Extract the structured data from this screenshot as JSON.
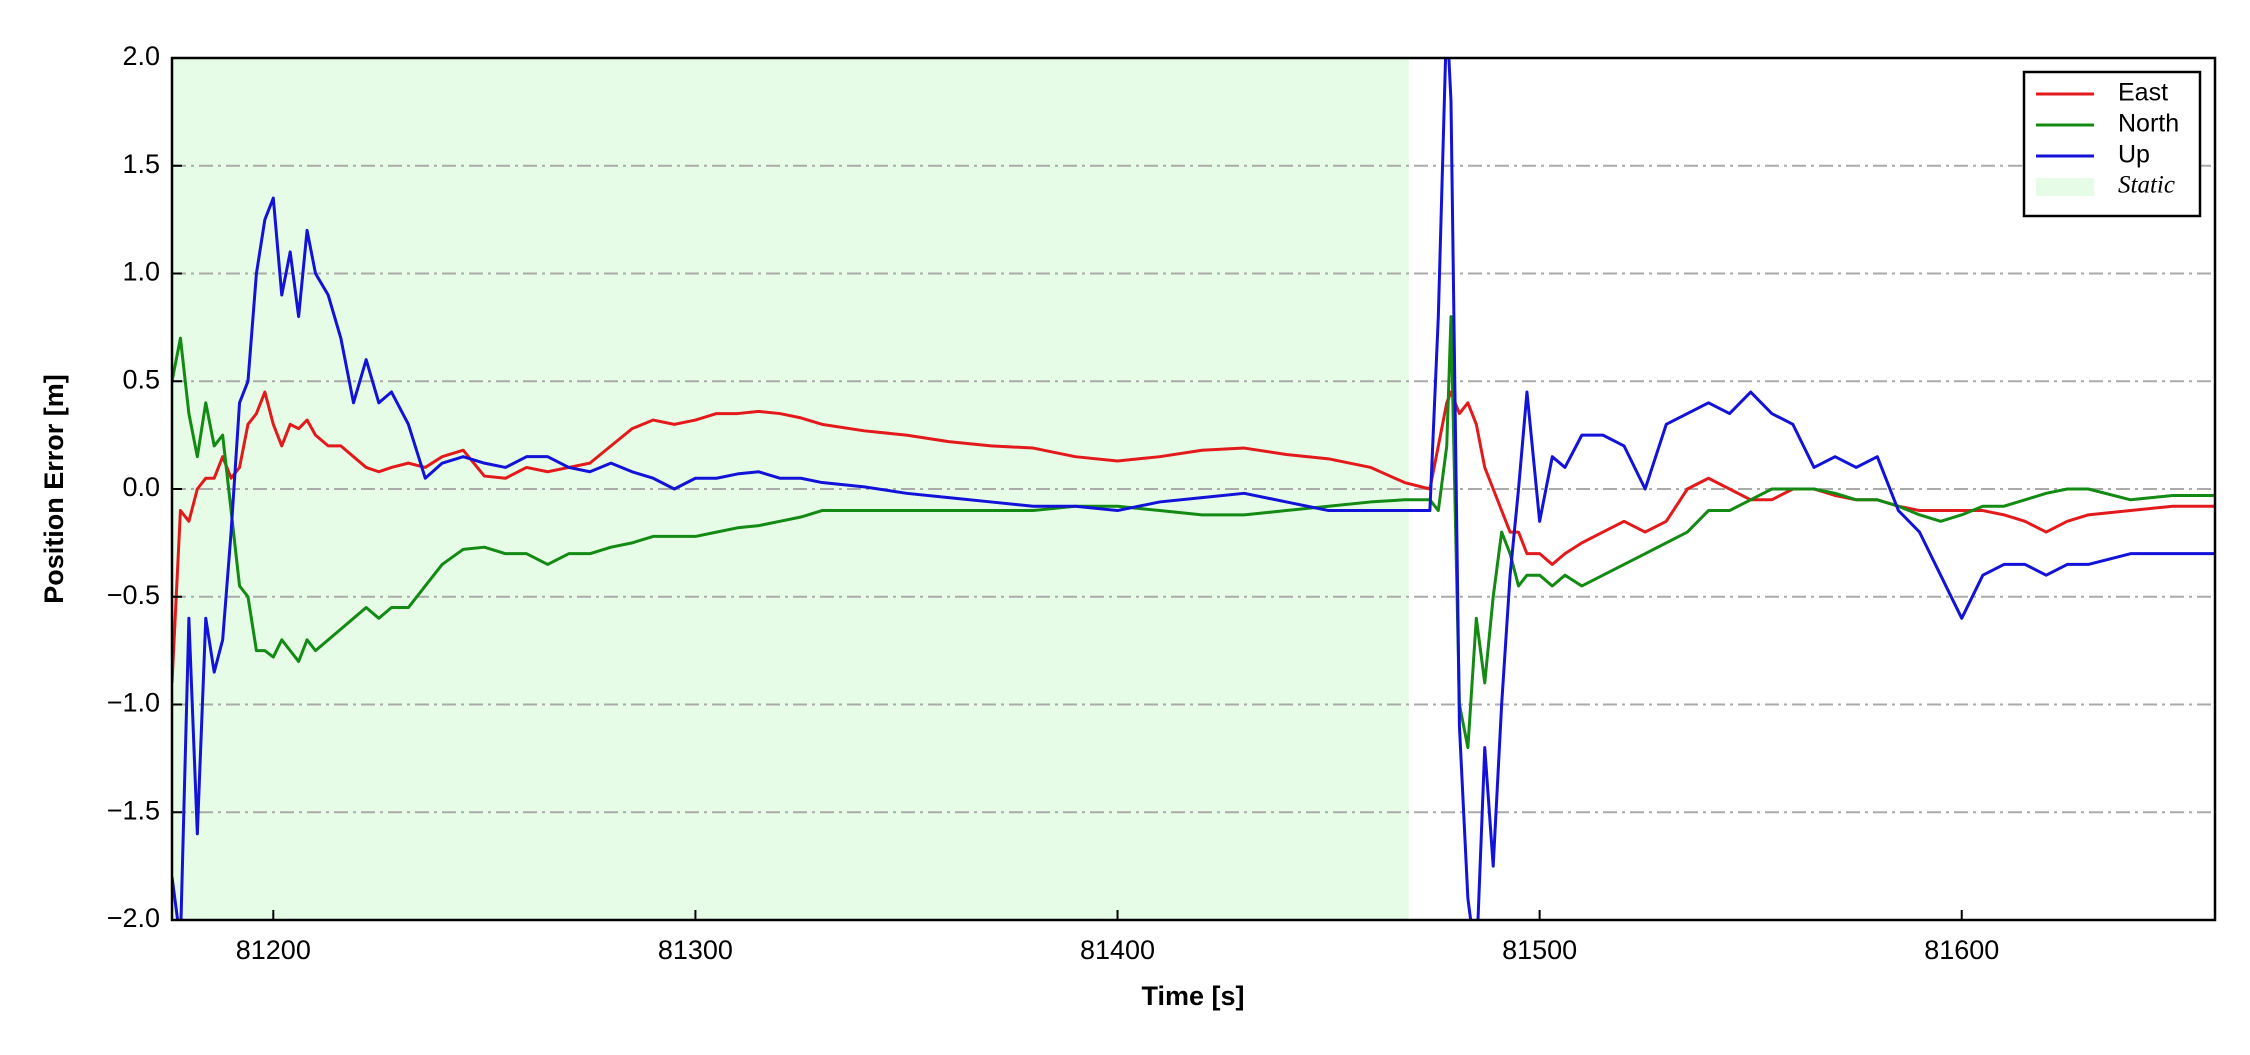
{
  "chart_data": {
    "type": "line",
    "xlabel": "Time [s]",
    "ylabel": "Position Error [m]",
    "xlim": [
      81176,
      81660
    ],
    "ylim": [
      -2.0,
      2.0
    ],
    "xticks": [
      81200,
      81300,
      81400,
      81500,
      81600
    ],
    "yticks": [
      {
        "value": -2.0,
        "label": "−2.0"
      },
      {
        "value": -1.5,
        "label": "−1.5"
      },
      {
        "value": -1.0,
        "label": "−1.0"
      },
      {
        "value": -0.5,
        "label": "−0.5"
      },
      {
        "value": 0.0,
        "label": "0.0"
      },
      {
        "value": 0.5,
        "label": "0.5"
      },
      {
        "value": 1.0,
        "label": "1.0"
      },
      {
        "value": 1.5,
        "label": "1.5"
      },
      {
        "value": 2.0,
        "label": "2.0"
      }
    ],
    "grid": true,
    "legend": "upper right",
    "shade": {
      "label": "Static",
      "x0": 81176,
      "x1": 81469,
      "color": "#e6fce6"
    },
    "x": [
      81176,
      81178,
      81180,
      81182,
      81184,
      81186,
      81188,
      81190,
      81192,
      81194,
      81196,
      81198,
      81200,
      81202,
      81204,
      81206,
      81208,
      81210,
      81213,
      81216,
      81219,
      81222,
      81225,
      81228,
      81232,
      81236,
      81240,
      81245,
      81250,
      81255,
      81260,
      81265,
      81270,
      81275,
      81280,
      81285,
      81290,
      81295,
      81300,
      81305,
      81310,
      81315,
      81320,
      81325,
      81330,
      81340,
      81350,
      81360,
      81370,
      81380,
      81390,
      81400,
      81410,
      81420,
      81430,
      81440,
      81450,
      81460,
      81468,
      81474,
      81476,
      81478,
      81479,
      81481,
      81483,
      81485,
      81487,
      81489,
      81491,
      81493,
      81495,
      81497,
      81500,
      81503,
      81506,
      81510,
      81515,
      81520,
      81525,
      81530,
      81535,
      81540,
      81545,
      81550,
      81555,
      81560,
      81565,
      81570,
      81575,
      81580,
      81585,
      81590,
      81595,
      81600,
      81605,
      81610,
      81615,
      81620,
      81625,
      81630,
      81640,
      81650,
      81660
    ],
    "series": [
      {
        "name": "East",
        "color": "#e31a1c",
        "values": [
          -0.9,
          -0.1,
          -0.15,
          0.0,
          0.05,
          0.05,
          0.15,
          0.05,
          0.1,
          0.3,
          0.35,
          0.45,
          0.3,
          0.2,
          0.3,
          0.28,
          0.32,
          0.25,
          0.2,
          0.2,
          0.15,
          0.1,
          0.08,
          0.1,
          0.12,
          0.1,
          0.15,
          0.18,
          0.06,
          0.05,
          0.1,
          0.08,
          0.1,
          0.12,
          0.2,
          0.28,
          0.32,
          0.3,
          0.32,
          0.35,
          0.35,
          0.36,
          0.35,
          0.33,
          0.3,
          0.27,
          0.25,
          0.22,
          0.2,
          0.19,
          0.15,
          0.13,
          0.15,
          0.18,
          0.19,
          0.16,
          0.14,
          0.1,
          0.03,
          0.0,
          0.2,
          0.4,
          0.45,
          0.35,
          0.4,
          0.3,
          0.1,
          0.0,
          -0.1,
          -0.2,
          -0.2,
          -0.3,
          -0.3,
          -0.35,
          -0.3,
          -0.25,
          -0.2,
          -0.15,
          -0.2,
          -0.15,
          0.0,
          0.05,
          0.0,
          -0.05,
          -0.05,
          0.0,
          0.0,
          -0.03,
          -0.05,
          -0.05,
          -0.08,
          -0.1,
          -0.1,
          -0.1,
          -0.1,
          -0.12,
          -0.15,
          -0.2,
          -0.15,
          -0.12,
          -0.1,
          -0.08,
          -0.08
        ]
      },
      {
        "name": "North",
        "color": "#138a13",
        "values": [
          0.5,
          0.7,
          0.35,
          0.15,
          0.4,
          0.2,
          0.25,
          -0.1,
          -0.45,
          -0.5,
          -0.75,
          -0.75,
          -0.78,
          -0.7,
          -0.75,
          -0.8,
          -0.7,
          -0.75,
          -0.7,
          -0.65,
          -0.6,
          -0.55,
          -0.6,
          -0.55,
          -0.55,
          -0.45,
          -0.35,
          -0.28,
          -0.27,
          -0.3,
          -0.3,
          -0.35,
          -0.3,
          -0.3,
          -0.27,
          -0.25,
          -0.22,
          -0.22,
          -0.22,
          -0.2,
          -0.18,
          -0.17,
          -0.15,
          -0.13,
          -0.1,
          -0.1,
          -0.1,
          -0.1,
          -0.1,
          -0.1,
          -0.08,
          -0.08,
          -0.1,
          -0.12,
          -0.12,
          -0.1,
          -0.08,
          -0.06,
          -0.05,
          -0.05,
          -0.1,
          0.2,
          0.8,
          -1.0,
          -1.2,
          -0.6,
          -0.9,
          -0.5,
          -0.2,
          -0.3,
          -0.45,
          -0.4,
          -0.4,
          -0.45,
          -0.4,
          -0.45,
          -0.4,
          -0.35,
          -0.3,
          -0.25,
          -0.2,
          -0.1,
          -0.1,
          -0.05,
          0.0,
          0.0,
          0.0,
          -0.02,
          -0.05,
          -0.05,
          -0.08,
          -0.12,
          -0.15,
          -0.12,
          -0.08,
          -0.08,
          -0.05,
          -0.02,
          0.0,
          0.0,
          -0.05,
          -0.03,
          -0.03
        ]
      },
      {
        "name": "Up",
        "color": "#1212d8",
        "values": [
          -1.8,
          -2.1,
          -0.6,
          -1.6,
          -0.6,
          -0.85,
          -0.7,
          -0.2,
          0.4,
          0.5,
          1.0,
          1.25,
          1.35,
          0.9,
          1.1,
          0.8,
          1.2,
          1.0,
          0.9,
          0.7,
          0.4,
          0.6,
          0.4,
          0.45,
          0.3,
          0.05,
          0.12,
          0.15,
          0.12,
          0.1,
          0.15,
          0.15,
          0.1,
          0.08,
          0.12,
          0.08,
          0.05,
          0.0,
          0.05,
          0.05,
          0.07,
          0.08,
          0.05,
          0.05,
          0.03,
          0.01,
          -0.02,
          -0.04,
          -0.06,
          -0.08,
          -0.08,
          -0.1,
          -0.06,
          -0.04,
          -0.02,
          -0.06,
          -0.1,
          -0.1,
          -0.1,
          -0.1,
          0.8,
          2.2,
          1.8,
          -1.1,
          -1.9,
          -2.2,
          -1.2,
          -1.75,
          -1.0,
          -0.4,
          0.0,
          0.45,
          -0.15,
          0.15,
          0.1,
          0.25,
          0.25,
          0.2,
          0.0,
          0.3,
          0.35,
          0.4,
          0.35,
          0.45,
          0.35,
          0.3,
          0.1,
          0.15,
          0.1,
          0.15,
          -0.1,
          -0.2,
          -0.4,
          -0.6,
          -0.4,
          -0.35,
          -0.35,
          -0.4,
          -0.35,
          -0.35,
          -0.3,
          -0.3,
          -0.3
        ]
      }
    ]
  }
}
